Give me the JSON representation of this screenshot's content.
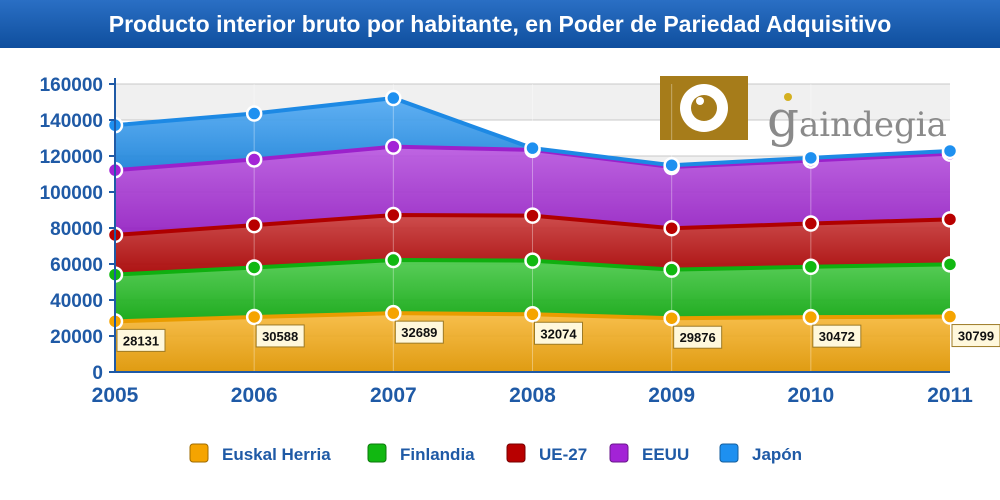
{
  "chart_data": {
    "type": "area",
    "stacked": true,
    "title": "Producto interior bruto por habitante, en Poder de Pariedad Adquisitivo",
    "x": [
      "2005",
      "2006",
      "2007",
      "2008",
      "2009",
      "2010",
      "2011"
    ],
    "ylim": [
      0,
      160000
    ],
    "yticks": [
      "0",
      "20000",
      "40000",
      "60000",
      "80000",
      "100000",
      "120000",
      "140000",
      "160000"
    ],
    "grid": true,
    "legend_position": "bottom",
    "series": [
      {
        "name": "Euskal Herria",
        "color": "#f5a400",
        "values": [
          28131,
          30588,
          32689,
          32074,
          29876,
          30472,
          30799
        ]
      },
      {
        "name": "Finlandia",
        "color": "#11b811",
        "values": [
          26000,
          27500,
          29500,
          29800,
          27000,
          28000,
          29000
        ]
      },
      {
        "name": "UE-27",
        "color": "#b80000",
        "values": [
          22000,
          23500,
          25000,
          25000,
          23000,
          24000,
          25000
        ]
      },
      {
        "name": "EEUU",
        "color": "#a323d6",
        "values": [
          36000,
          36500,
          38000,
          36500,
          34000,
          35000,
          36500
        ]
      },
      {
        "name": "Japón",
        "color": "#1e90f0",
        "values": [
          25000,
          25500,
          27000,
          1000,
          1000,
          1500,
          1500
        ]
      }
    ],
    "data_labels": [
      "28131",
      "30588",
      "32689",
      "32074",
      "29876",
      "30472",
      "30799"
    ]
  },
  "logo": {
    "text": "aindegia",
    "initial": "g",
    "color": "#a67c1a"
  }
}
